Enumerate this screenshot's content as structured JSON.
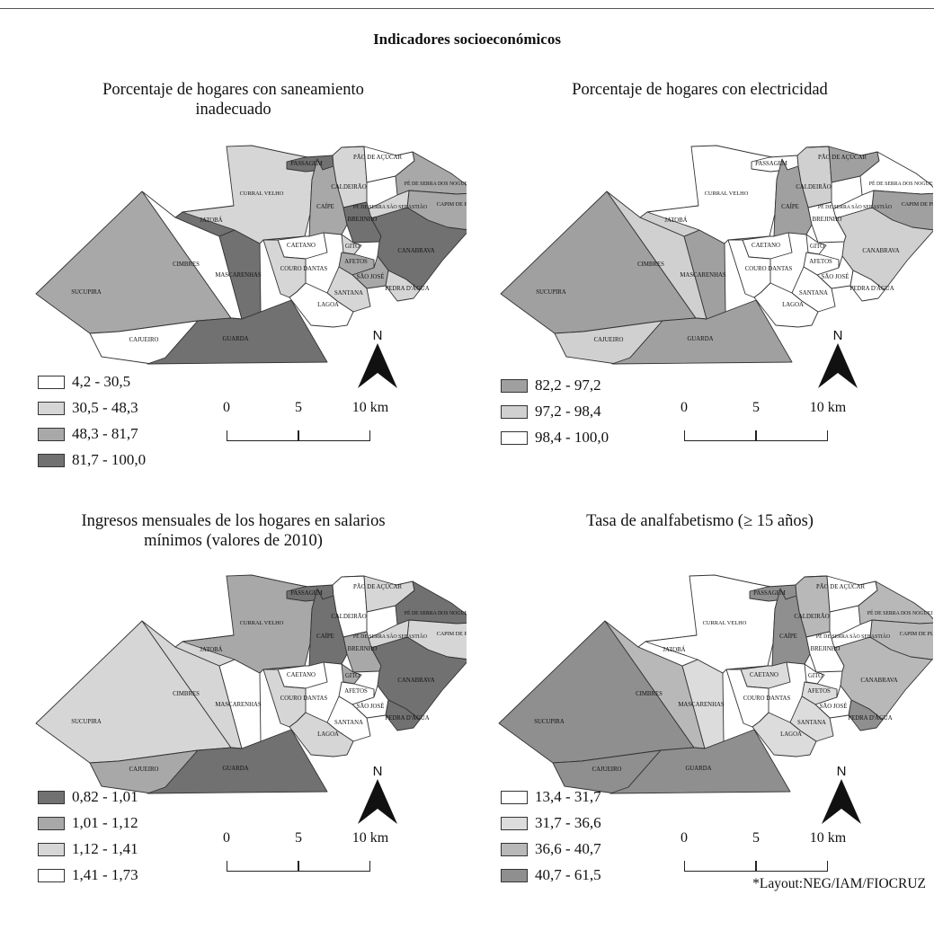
{
  "main_title": "Indicadores socioeconómicos",
  "credit": "*Layout:NEG/IAM/FIOCRUZ",
  "colors": {
    "white": "#ffffff",
    "light": "#d6d6d6",
    "mid": "#a8a8a8",
    "dark": "#717171"
  },
  "scale": {
    "l0": "0",
    "l1": "5",
    "l2": "10 km"
  },
  "north_label": "N",
  "region_labels": {
    "sucupira": "SUCUPIRA",
    "cimbres": "CIMBRES",
    "cajueiro": "CAJUEIRO",
    "guarda": "GUARDA",
    "mascarenhas": "MASCARENHAS",
    "jatoba": "JATOBÁ",
    "curral_velho": "CURRAL VELHO",
    "passagem": "PASSAGEM",
    "caldeirao": "CALDEIRÃO",
    "pao_de_acucar": "PÃO DE AÇÚCAR",
    "pe_serra_nogueira": "PÉ DE SERRA DOS NOGUEIRA",
    "capim_de_planta": "CAPIM DE PLANTA",
    "pe_serra_sebastiao": "PÉ DE SERRA SÃO SEBASTIÃO",
    "caipe": "CAÍPE",
    "brejinho": "BREJINHO",
    "canabrava": "CANABRAVA",
    "caetano": "CAETANO",
    "gito": "GITO",
    "afetos": "AFETOS",
    "couro_dantas": "COURO DANTAS",
    "sao_jose": "SÃO JOSÉ",
    "pedra_dagua": "PEDRA D'ÁGUA",
    "santana": "SANTANA",
    "lagoa": "LAGOA"
  },
  "panels": [
    {
      "id": "saneamiento",
      "title_line1": "Porcentaje de hogares con saneamiento",
      "title_line2": "inadecuado",
      "legend": [
        {
          "label": "4,2 - 30,5",
          "color": "#ffffff"
        },
        {
          "label": "30,5 - 48,3",
          "color": "#d6d6d6"
        },
        {
          "label": "48,3 - 81,7",
          "color": "#a8a8a8"
        },
        {
          "label": "81,7 - 100,0",
          "color": "#717171"
        }
      ],
      "fills": {
        "sucupira": "mid",
        "cimbres": "white",
        "cajueiro": "white",
        "guarda": "dark",
        "mascarenhas": "dark",
        "jatoba": "dark",
        "curral_velho": "light",
        "passagem": "dark",
        "caldeirao": "light",
        "pao_de_acucar": "white",
        "pe_serra_nogueira": "mid",
        "capim_de_planta": "mid",
        "pe_serra_sebastiao": "light",
        "caipe": "mid",
        "brejinho": "dark",
        "canabrava": "dark",
        "caetano": "white",
        "gito": "light",
        "afetos": "mid",
        "couro_dantas": "light",
        "sao_jose": "mid",
        "pedra_dagua": "light",
        "santana": "light",
        "lagoa": "white"
      }
    },
    {
      "id": "electricidad",
      "title_line1": "Porcentaje de hogares con electricidad",
      "title_line2": "",
      "legend": [
        {
          "label": "82,2 - 97,2",
          "color": "#a0a0a0"
        },
        {
          "label": "97,2 - 98,4",
          "color": "#d0d0d0"
        },
        {
          "label": "98,4 - 100,0",
          "color": "#ffffff"
        }
      ],
      "fills": {
        "sucupira": "mid",
        "cimbres": "light",
        "cajueiro": "light",
        "guarda": "mid",
        "mascarenhas": "mid",
        "jatoba": "light",
        "curral_velho": "white",
        "passagem": "white",
        "caldeirao": "light",
        "pao_de_acucar": "mid",
        "pe_serra_nogueira": "white",
        "capim_de_planta": "mid",
        "pe_serra_sebastiao": "white",
        "caipe": "mid",
        "brejinho": "white",
        "canabrava": "light",
        "caetano": "white",
        "gito": "white",
        "afetos": "white",
        "couro_dantas": "white",
        "sao_jose": "white",
        "pedra_dagua": "white",
        "santana": "white",
        "lagoa": "white"
      }
    },
    {
      "id": "ingresos",
      "title_line1": "Ingresos mensuales de los hogares en salarios",
      "title_line2": "mínimos (valores de 2010)",
      "legend": [
        {
          "label": "0,82 - 1,01",
          "color": "#717171"
        },
        {
          "label": "1,01 - 1,12",
          "color": "#a8a8a8"
        },
        {
          "label": "1,12 - 1,41",
          "color": "#d6d6d6"
        },
        {
          "label": "1,41 - 1,73",
          "color": "#ffffff"
        }
      ],
      "fills": {
        "sucupira": "light",
        "cimbres": "light",
        "cajueiro": "mid",
        "guarda": "dark",
        "mascarenhas": "white",
        "jatoba": "light",
        "curral_velho": "mid",
        "passagem": "dark",
        "caldeirao": "white",
        "pao_de_acucar": "light",
        "pe_serra_nogueira": "dark",
        "capim_de_planta": "light",
        "pe_serra_sebastiao": "light",
        "caipe": "dark",
        "brejinho": "mid",
        "canabrava": "dark",
        "caetano": "white",
        "gito": "mid",
        "afetos": "white",
        "couro_dantas": "light",
        "sao_jose": "white",
        "pedra_dagua": "dark",
        "santana": "white",
        "lagoa": "light"
      }
    },
    {
      "id": "analfabetismo",
      "title_line1": "Tasa de analfabetismo (≥ 15 años)",
      "title_line2": "",
      "legend": [
        {
          "label": "13,4 - 31,7",
          "color": "#ffffff"
        },
        {
          "label": "31,7 - 36,6",
          "color": "#dcdcdc"
        },
        {
          "label": "36,6 - 40,7",
          "color": "#b8b8b8"
        },
        {
          "label": "40,7 - 61,5",
          "color": "#8f8f8f"
        }
      ],
      "fills": {
        "sucupira": "dark",
        "cimbres": "mid",
        "cajueiro": "dark",
        "guarda": "dark",
        "mascarenhas": "light",
        "jatoba": "white",
        "curral_velho": "white",
        "passagem": "dark",
        "caldeirao": "mid",
        "pao_de_acucar": "white",
        "pe_serra_nogueira": "mid",
        "capim_de_planta": "mid",
        "pe_serra_sebastiao": "white",
        "caipe": "dark",
        "brejinho": "white",
        "canabrava": "mid",
        "caetano": "light",
        "gito": "white",
        "afetos": "light",
        "couro_dantas": "white",
        "sao_jose": "white",
        "pedra_dagua": "dark",
        "santana": "light",
        "lagoa": "light"
      }
    }
  ]
}
